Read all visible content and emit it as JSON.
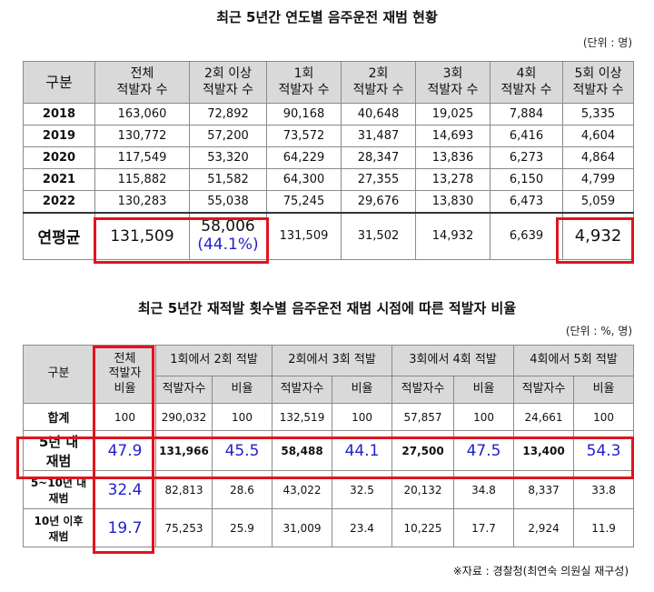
{
  "table1": {
    "title": "최근 5년간 연도별 음주운전 재범 현황",
    "unit": "(단위 : 명)",
    "headers": [
      "구분",
      "전체\n적발자 수",
      "2회 이상\n적발자 수",
      "1회\n적발자 수",
      "2회\n적발자 수",
      "3회\n적발자 수",
      "4회\n적발자 수",
      "5회 이상\n적발자 수"
    ],
    "rows": [
      {
        "year": "2018",
        "cells": [
          "163,060",
          "72,892",
          "90,168",
          "40,648",
          "19,025",
          "7,884",
          "5,335"
        ]
      },
      {
        "year": "2019",
        "cells": [
          "130,772",
          "57,200",
          "73,572",
          "31,487",
          "14,693",
          "6,416",
          "4,604"
        ]
      },
      {
        "year": "2020",
        "cells": [
          "117,549",
          "53,320",
          "64,229",
          "28,347",
          "13,836",
          "6,273",
          "4,864"
        ]
      },
      {
        "year": "2021",
        "cells": [
          "115,882",
          "51,582",
          "64,300",
          "27,355",
          "13,278",
          "6,150",
          "4,799"
        ]
      },
      {
        "year": "2022",
        "cells": [
          "130,283",
          "55,038",
          "75,245",
          "29,676",
          "13,830",
          "6,473",
          "5,059"
        ]
      }
    ],
    "avg": {
      "label": "연평균",
      "total": "131,509",
      "two_plus": "58,006",
      "two_plus_pct": "(44.1%)",
      "cells": [
        "131,509",
        "31,502",
        "14,932",
        "6,639",
        "4,932"
      ]
    }
  },
  "table2": {
    "title": "최근 5년간 재적발 횟수별 음주운전 재범 시점에 따른 적발자 비율",
    "unit": "(단위 : %, 명)",
    "header_gubun": "구분",
    "header_total": "전체\n적발자\n비율",
    "groups": [
      "1회에서 2회 적발",
      "2회에서 3회 적발",
      "3회에서 4회 적발",
      "4회에서 5회 적발"
    ],
    "sub": [
      "적발자수",
      "비율"
    ],
    "rows": [
      {
        "label": "합계",
        "total": "100",
        "cells": [
          "290,032",
          "100",
          "132,519",
          "100",
          "57,857",
          "100",
          "24,661",
          "100"
        ]
      },
      {
        "label": "5년 내\n재범",
        "total": "47.9",
        "cells": [
          "131,966",
          "45.5",
          "58,488",
          "44.1",
          "27,500",
          "47.5",
          "13,400",
          "54.3"
        ]
      },
      {
        "label": "5~10년 내\n재범",
        "total": "32.4",
        "cells": [
          "82,813",
          "28.6",
          "43,022",
          "32.5",
          "20,132",
          "34.8",
          "8,337",
          "33.8"
        ]
      },
      {
        "label": "10년 이후\n재범",
        "total": "19.7",
        "cells": [
          "75,253",
          "25.9",
          "31,009",
          "23.4",
          "10,225",
          "17.7",
          "2,924",
          "11.9"
        ]
      }
    ]
  },
  "source": "※자료 : 경찰청(최연숙 의원실 재구성)",
  "colors": {
    "highlight_border": "#e0141e",
    "emphasis_text": "#1f1fcc",
    "header_bg": "#d9d9d9"
  }
}
